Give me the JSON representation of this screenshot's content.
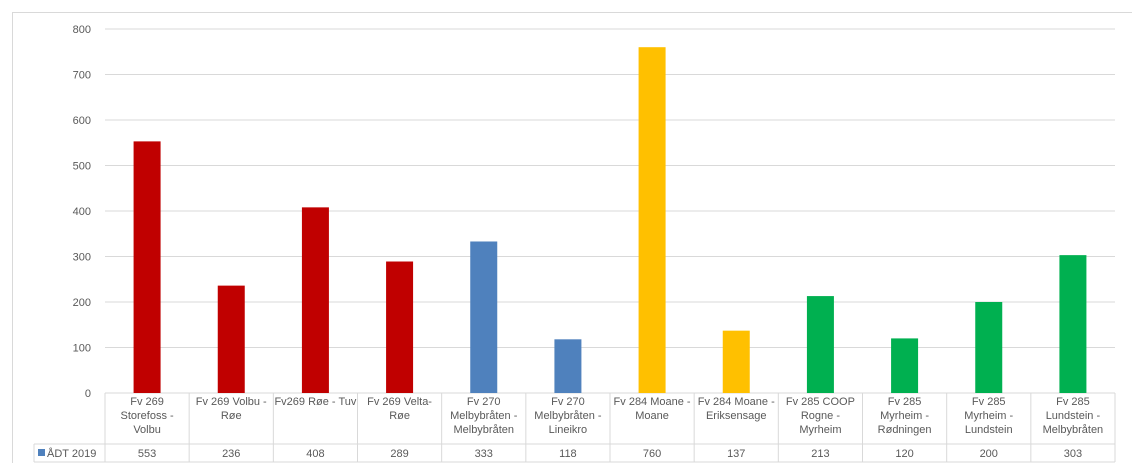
{
  "chart_data": {
    "type": "bar",
    "title": "",
    "xlabel": "",
    "ylabel": "",
    "ylim": [
      0,
      800
    ],
    "yticks": [
      0,
      100,
      200,
      300,
      400,
      500,
      600,
      700,
      800
    ],
    "grid": true,
    "legend": "data-table-left",
    "categories": [
      [
        "Fv 269",
        "Storefoss -",
        "Volbu"
      ],
      [
        "Fv 269 Volbu -",
        "Røe"
      ],
      [
        "Fv269 Røe - Tuv"
      ],
      [
        "Fv 269 Velta-",
        "Røe"
      ],
      [
        "Fv 270",
        "Melbybråten -",
        "Melbybråten"
      ],
      [
        "Fv 270",
        "Melbybråten -",
        "Lineikro"
      ],
      [
        "Fv 284 Moane -",
        "Moane"
      ],
      [
        "Fv 284 Moane -",
        "Eriksensage"
      ],
      [
        "Fv 285 COOP",
        "Rogne -",
        "Myrheim"
      ],
      [
        "Fv 285",
        "Myrheim -",
        "Rødningen"
      ],
      [
        "Fv 285",
        "Myrheim -",
        "Lundstein"
      ],
      [
        "Fv 285",
        "Lundstein -",
        "Melbybråten"
      ]
    ],
    "series": [
      {
        "name": "ÅDT 2019",
        "legend_color": "#4f81bd",
        "values": [
          553,
          236,
          408,
          289,
          333,
          118,
          760,
          137,
          213,
          120,
          200,
          303
        ],
        "colors": [
          "#c00000",
          "#c00000",
          "#c00000",
          "#c00000",
          "#4f81bd",
          "#4f81bd",
          "#ffc000",
          "#ffc000",
          "#00b050",
          "#00b050",
          "#00b050",
          "#00b050"
        ]
      }
    ]
  }
}
